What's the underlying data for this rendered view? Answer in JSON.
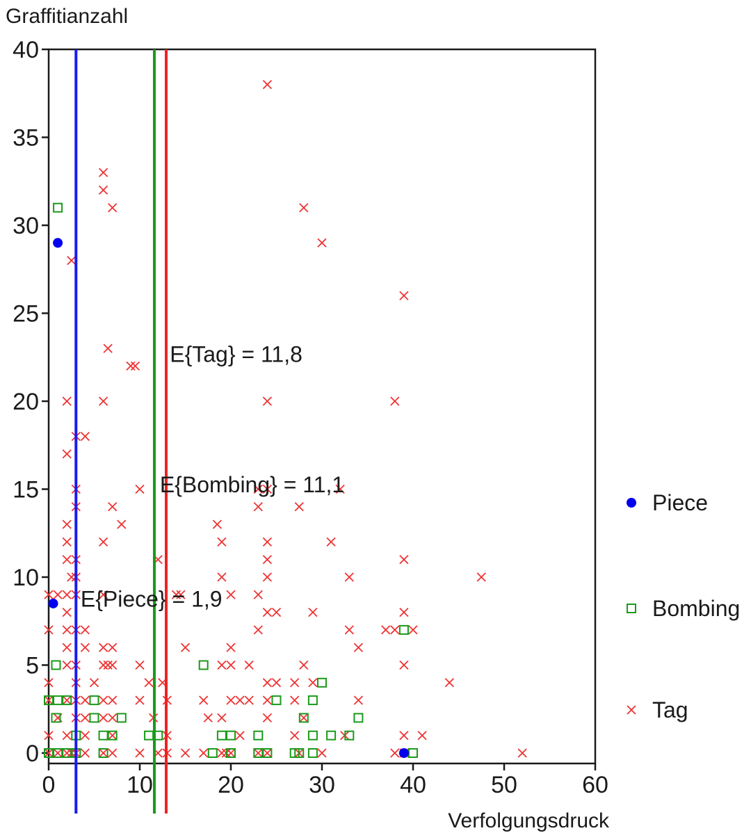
{
  "chart_data": {
    "type": "scatter",
    "title": "",
    "xlabel": "Verfolgungsdruck",
    "ylabel": "Graffitianzahl",
    "xlim": [
      0,
      60
    ],
    "ylim": [
      0,
      40
    ],
    "xticks": [
      0,
      10,
      20,
      30,
      40,
      50,
      60
    ],
    "yticks": [
      0,
      5,
      10,
      15,
      20,
      25,
      30,
      35,
      40
    ],
    "grid": false,
    "legend_position": "right",
    "series": [
      {
        "name": "Piece",
        "marker": "circle",
        "color": "#0000ee",
        "points": [
          [
            1,
            29
          ],
          [
            0.5,
            8.5
          ],
          [
            39,
            0
          ]
        ]
      },
      {
        "name": "Bombing",
        "marker": "square",
        "color": "#1a9a1a",
        "points": [
          [
            1,
            31
          ],
          [
            0.8,
            5
          ],
          [
            0,
            3
          ],
          [
            1,
            3
          ],
          [
            2,
            3
          ],
          [
            0.8,
            2
          ],
          [
            5,
            3
          ],
          [
            5,
            2
          ],
          [
            3,
            1
          ],
          [
            7,
            1
          ],
          [
            8,
            2
          ],
          [
            12,
            1
          ],
          [
            11,
            1
          ],
          [
            17,
            5
          ],
          [
            19,
            1
          ],
          [
            20,
            1
          ],
          [
            23,
            1
          ],
          [
            25,
            3
          ],
          [
            28,
            2
          ],
          [
            29,
            3
          ],
          [
            30,
            4
          ],
          [
            29,
            1
          ],
          [
            31,
            1
          ],
          [
            33,
            1
          ],
          [
            34,
            2
          ],
          [
            39,
            7
          ],
          [
            0,
            0
          ],
          [
            1,
            0
          ],
          [
            2,
            0
          ],
          [
            3,
            0
          ],
          [
            6,
            0
          ],
          [
            18,
            0
          ],
          [
            20,
            0
          ],
          [
            23,
            0
          ],
          [
            24,
            0
          ],
          [
            27,
            0
          ],
          [
            27.5,
            0
          ],
          [
            29,
            0
          ],
          [
            40,
            0
          ],
          [
            6,
            1
          ]
        ]
      },
      {
        "name": "Tag",
        "marker": "x",
        "color": "#ee3333",
        "points": [
          [
            24,
            38
          ],
          [
            6,
            33
          ],
          [
            6,
            32
          ],
          [
            7,
            31
          ],
          [
            28,
            31
          ],
          [
            30,
            29
          ],
          [
            2.5,
            28
          ],
          [
            39,
            26
          ],
          [
            6.5,
            23
          ],
          [
            9,
            22
          ],
          [
            9.5,
            22
          ],
          [
            2,
            20
          ],
          [
            6,
            20
          ],
          [
            24,
            20
          ],
          [
            38,
            20
          ],
          [
            3,
            18
          ],
          [
            4,
            18
          ],
          [
            2,
            17
          ],
          [
            3,
            15
          ],
          [
            10,
            15
          ],
          [
            23,
            15
          ],
          [
            24,
            15
          ],
          [
            32,
            15
          ],
          [
            3,
            14
          ],
          [
            7,
            14
          ],
          [
            23,
            14
          ],
          [
            27.5,
            14
          ],
          [
            2,
            13
          ],
          [
            8,
            13
          ],
          [
            18.5,
            13
          ],
          [
            2,
            12
          ],
          [
            6,
            12
          ],
          [
            19,
            12
          ],
          [
            24,
            12
          ],
          [
            31,
            12
          ],
          [
            2,
            11
          ],
          [
            3,
            11
          ],
          [
            12,
            11
          ],
          [
            24,
            11
          ],
          [
            39,
            11
          ],
          [
            2.5,
            10
          ],
          [
            3,
            10
          ],
          [
            19,
            10
          ],
          [
            24,
            10
          ],
          [
            33,
            10
          ],
          [
            47.5,
            10
          ],
          [
            0,
            9
          ],
          [
            1,
            9
          ],
          [
            2,
            9
          ],
          [
            3,
            9
          ],
          [
            6,
            9
          ],
          [
            14,
            9
          ],
          [
            14.5,
            9
          ],
          [
            20,
            9
          ],
          [
            23,
            9
          ],
          [
            2,
            8
          ],
          [
            24,
            8
          ],
          [
            25,
            8
          ],
          [
            29,
            8
          ],
          [
            39,
            8
          ],
          [
            0,
            7
          ],
          [
            2,
            7
          ],
          [
            3,
            7
          ],
          [
            4,
            7
          ],
          [
            23,
            7
          ],
          [
            33,
            7
          ],
          [
            37,
            7
          ],
          [
            38,
            7
          ],
          [
            40,
            7
          ],
          [
            2,
            6
          ],
          [
            4,
            6
          ],
          [
            6,
            6
          ],
          [
            7,
            6
          ],
          [
            15,
            6
          ],
          [
            20,
            6
          ],
          [
            34,
            6
          ],
          [
            2,
            5
          ],
          [
            3,
            5
          ],
          [
            6,
            5
          ],
          [
            6.5,
            5
          ],
          [
            7,
            5
          ],
          [
            10,
            5
          ],
          [
            19,
            5
          ],
          [
            20,
            5
          ],
          [
            22,
            5
          ],
          [
            28,
            5
          ],
          [
            39,
            5
          ],
          [
            0,
            4
          ],
          [
            3,
            4
          ],
          [
            5,
            4
          ],
          [
            11,
            4
          ],
          [
            12.5,
            4
          ],
          [
            24,
            4
          ],
          [
            25,
            4
          ],
          [
            27,
            4
          ],
          [
            29,
            4
          ],
          [
            44,
            4
          ],
          [
            0,
            3
          ],
          [
            2,
            3
          ],
          [
            3,
            3
          ],
          [
            4,
            3
          ],
          [
            6,
            3
          ],
          [
            7,
            3
          ],
          [
            10,
            3
          ],
          [
            13,
            3
          ],
          [
            17,
            3
          ],
          [
            20,
            3
          ],
          [
            21,
            3
          ],
          [
            22,
            3
          ],
          [
            24,
            3
          ],
          [
            27,
            3
          ],
          [
            34,
            3
          ],
          [
            1,
            2
          ],
          [
            3,
            2
          ],
          [
            4,
            2
          ],
          [
            6,
            2
          ],
          [
            7,
            2
          ],
          [
            11.5,
            2
          ],
          [
            17.5,
            2
          ],
          [
            19,
            2
          ],
          [
            24,
            2
          ],
          [
            28,
            2
          ],
          [
            0,
            1
          ],
          [
            2,
            1
          ],
          [
            4,
            1
          ],
          [
            7,
            1
          ],
          [
            13,
            1
          ],
          [
            21,
            1
          ],
          [
            27,
            1
          ],
          [
            32.5,
            1
          ],
          [
            39,
            1
          ],
          [
            41,
            1
          ],
          [
            0,
            0
          ],
          [
            1,
            0
          ],
          [
            2,
            0
          ],
          [
            2.5,
            0
          ],
          [
            3,
            0
          ],
          [
            4,
            0
          ],
          [
            6,
            0
          ],
          [
            7,
            0
          ],
          [
            10,
            0
          ],
          [
            12,
            0
          ],
          [
            13,
            0
          ],
          [
            15,
            0
          ],
          [
            17,
            0
          ],
          [
            19,
            0
          ],
          [
            19.5,
            0
          ],
          [
            20,
            0
          ],
          [
            23,
            0
          ],
          [
            24,
            0
          ],
          [
            27.5,
            0
          ],
          [
            30,
            0
          ],
          [
            38,
            0
          ],
          [
            39,
            0
          ],
          [
            52,
            0
          ]
        ]
      }
    ],
    "mean_lines": [
      {
        "name": "Piece",
        "x": 3,
        "color": "#1a1aee",
        "label": "E{Piece} = 1,9"
      },
      {
        "name": "Bombing",
        "x": 11.6,
        "color": "#1a991a",
        "label": "E{Bombing} = 11,1"
      },
      {
        "name": "Tag",
        "x": 12.9,
        "color": "#ee2222",
        "label": "E{Tag} = 11,8"
      }
    ],
    "annotations": [
      {
        "text": "E{Tag} = 11,8",
        "x": 13.3,
        "y": 22.7
      },
      {
        "text": "E{Bombing} = 11,1",
        "x": 12.2,
        "y": 15.3
      },
      {
        "text": "E{Piece} = 1,9",
        "x": 3.5,
        "y": 8.8
      }
    ]
  }
}
